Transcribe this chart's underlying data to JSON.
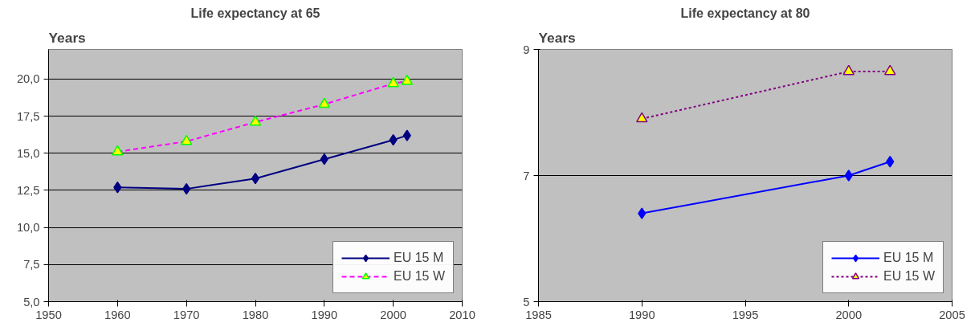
{
  "chart_data": [
    {
      "type": "line",
      "title": "Life expectancy at 65",
      "ylabel": "Years",
      "x": [
        1960,
        1970,
        1980,
        1990,
        2000,
        2002
      ],
      "series": [
        {
          "name": "EU 15 M",
          "color": "#000080",
          "values": [
            12.7,
            12.6,
            13.3,
            14.6,
            15.9,
            16.2
          ],
          "marker": "diamond",
          "line_style": "solid"
        },
        {
          "name": "EU 15 W",
          "color": "#ff00ff",
          "values": [
            15.1,
            15.8,
            17.1,
            18.3,
            19.7,
            19.85
          ],
          "marker": "triangle",
          "line_style": "dashed"
        }
      ],
      "xlim": [
        1950,
        2010
      ],
      "xticks": [
        1950,
        1960,
        1970,
        1980,
        1990,
        2000,
        2010
      ],
      "ylim": [
        5,
        22
      ],
      "yticks": [
        {
          "value": 5,
          "label": "5,0"
        },
        {
          "value": 7.5,
          "label": "7,5"
        },
        {
          "value": 10,
          "label": "10,0"
        },
        {
          "value": 12.5,
          "label": "12,5"
        },
        {
          "value": 15,
          "label": "15,0"
        },
        {
          "value": 17.5,
          "label": "17,5"
        },
        {
          "value": 20,
          "label": "20,0"
        }
      ],
      "grid": "y",
      "legend": "bottom right"
    },
    {
      "type": "line",
      "title": "Life expectancy at 80",
      "ylabel": "Years",
      "x": [
        1990,
        2000,
        2002
      ],
      "series": [
        {
          "name": "EU 15 M",
          "color": "#0000ff",
          "values": [
            6.4,
            7.0,
            7.22
          ],
          "marker": "diamond",
          "line_style": "solid"
        },
        {
          "name": "EU 15 W",
          "color": "#800080",
          "values": [
            7.9,
            8.65,
            8.65
          ],
          "marker": "triangle",
          "line_style": "dotted"
        }
      ],
      "xlim": [
        1985,
        2005
      ],
      "xticks": [
        1985,
        1990,
        1995,
        2000,
        2005
      ],
      "ylim": [
        5,
        9
      ],
      "yticks": [
        5,
        7,
        9
      ],
      "grid": "y",
      "legend": "bottom right"
    }
  ]
}
